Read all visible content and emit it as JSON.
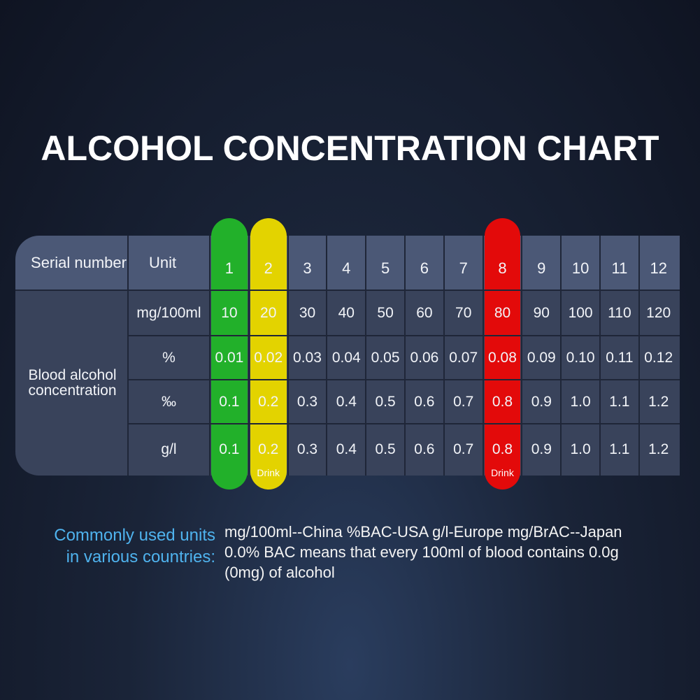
{
  "title": "ALCOHOL CONCENTRATION CHART",
  "table": {
    "header": {
      "serial": "Serial number",
      "unit": "Unit",
      "columns": [
        "1",
        "2",
        "3",
        "4",
        "5",
        "6",
        "7",
        "8",
        "9",
        "10",
        "11",
        "12"
      ]
    },
    "row_group": "Blood alcohol concentration",
    "rows": [
      {
        "unit": "mg/100ml",
        "values": [
          "10",
          "20",
          "30",
          "40",
          "50",
          "60",
          "70",
          "80",
          "90",
          "100",
          "110",
          "120"
        ]
      },
      {
        "unit": "%",
        "values": [
          "0.01",
          "0.02",
          "0.03",
          "0.04",
          "0.05",
          "0.06",
          "0.07",
          "0.08",
          "0.09",
          "0.10",
          "0.11",
          "0.12"
        ]
      },
      {
        "unit": "‰",
        "values": [
          "0.1",
          "0.2",
          "0.3",
          "0.4",
          "0.5",
          "0.6",
          "0.7",
          "0.8",
          "0.9",
          "1.0",
          "1.1",
          "1.2"
        ]
      },
      {
        "unit": "g/l",
        "values": [
          "0.1",
          "0.2",
          "0.3",
          "0.4",
          "0.5",
          "0.6",
          "0.7",
          "0.8",
          "0.9",
          "1.0",
          "1.1",
          "1.2"
        ]
      }
    ],
    "highlight_labels": [
      "Drink",
      "Drink"
    ]
  },
  "footer": {
    "heading": [
      "Commonly used units",
      "in various countries:"
    ],
    "lines": [
      "mg/100ml--China %BAC-USA g/l-Europe mg/BrAC--Japan",
      "0.0% BAC means that every 100ml of blood contains 0.0g",
      "(0mg) of alcohol"
    ]
  }
}
